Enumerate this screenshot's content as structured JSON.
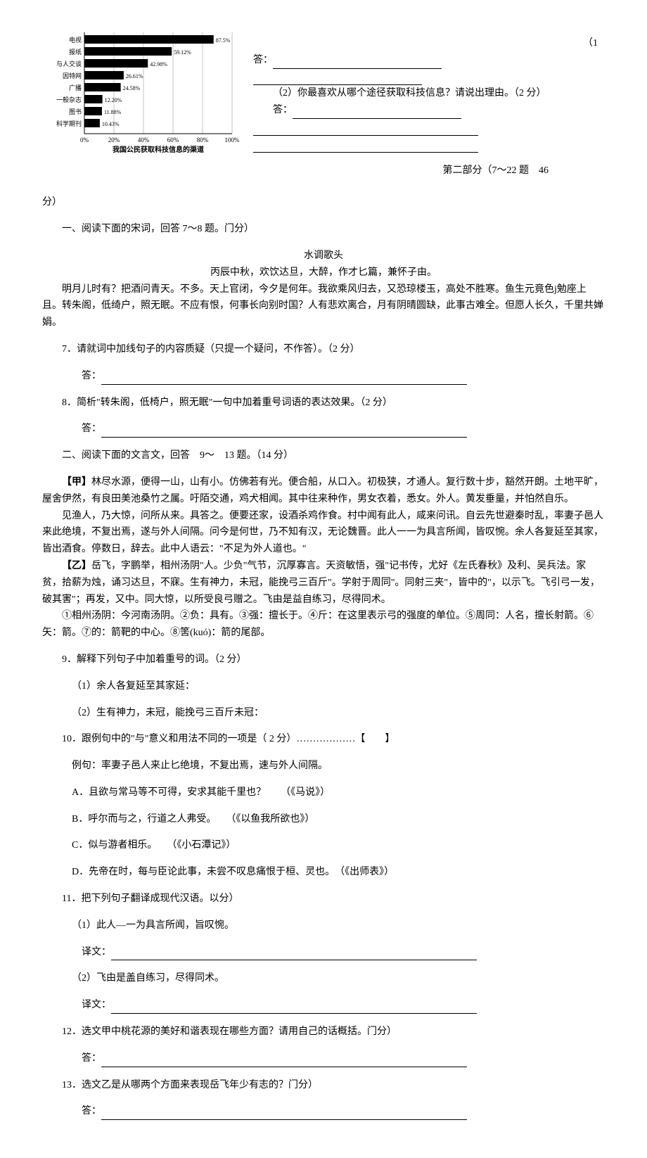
{
  "chart": {
    "type": "horizontal_bar",
    "title": "我国公民获取科技信息的渠道",
    "title_fontsize": 10,
    "categories": [
      "电视",
      "报纸",
      "与人交谈",
      "因特网",
      "广播",
      "一般杂志",
      "图书",
      "科学期刊"
    ],
    "values": [
      87.5,
      59.12,
      42.98,
      26.61,
      24.58,
      12.2,
      11.88,
      10.43
    ],
    "value_labels": [
      "87.5%",
      "59.12%",
      "42.98%",
      "26.61%",
      "24.58%",
      "12.20%",
      "11.88%",
      "10.43%"
    ],
    "x_ticks": [
      "0%",
      "20%",
      "40%",
      "60%",
      "80%",
      "100%"
    ],
    "bar_color": "#000000",
    "background_color": "#ffffff",
    "grid_color": "#000000",
    "label_fontsize": 9,
    "value_fontsize": 8,
    "xlim": [
      0,
      100
    ]
  },
  "right": {
    "top_note": "（1",
    "ans_label": "答：",
    "q2": "（2）你最喜欢从哪个途径获取科技信息？请说出理由。（2 分）",
    "part2_header": "第二部分（7～22 题　46"
  },
  "fen": "分）",
  "section1_intro": "一、阅读下面的宋词，回答 7～8 题。门分）",
  "poem_title": "水调歌头",
  "poem_sub": "丙辰中秋，欢饮达旦，大醉，作才匕篇，兼怀子由。",
  "poem_body1": "明月儿时有？把酒问青天。不多。天上官闭，今夕是何年。我欲乘风归去，又恐琼楼玉，高处不胜寒。鱼生元竟色j勉座上且。转朱阁，低绮户，照无眠。不应有恨，何事长向别时国？人有悲欢离合，月有阴晴圆缺，此事古难全。但愿人长久，千里共婵娟。",
  "q7": "7．请就词中加线句子的内容质疑（只提一个疑问，不作答）。（2 分）",
  "q8": "8．简析\"转朱阁，低椅户，照无眠\"一句中加着重号词语的表达效果。（2 分）",
  "ans": "答：",
  "section2_intro": "二、阅读下面的文言文，回答　9～　13 题。（14 分）",
  "jia_label": "【甲】",
  "jia_p1": "林尽水源，便得一山，山有小。仿佛若有光。便合船，从口入。初极狭，才通人。复行数十步，豁然开朗。土地平旷，屋舍伊然，有良田美池桑竹之属。吁陌交通，鸡犬相闻。其中往来种作，男女衣着，悉女。外人。黄发垂量，并怕然自乐。",
  "jia_p2": "见渔人，乃大惊，问所从来。具答之。便要还家，设酒杀鸡作食。村中闻有此人，咸来问讯。自云先世避秦时乱，率妻子邑人来此绝境，不复出焉，遂与外人间隔。问今是何世，乃不知有汉，无论魏晋。此人一一为具言所闻，皆叹惋。余人各复延至其家，皆出酒食。停数日，辞去。此中人语云：\"不足为外人道也。\"",
  "yi_label": "【乙】",
  "yi_p1": "岳飞，字鹏举，相州汤阴\"人。少负\"气节，沉厚寡言。天资敏悟，强\"记书传，尤好《左氏春秋》及利、吴兵法。家贫，拾薪为烛，诵习达旦，不寐。生有神力，未冠，能挽弓三百斤\"。学射于周同\"。同射三夹\"，皆中的\"，以示飞。飞引弓一发，破其害\"；再发，又中。同大惊，以所受良弓赠之。飞由是益自练习，尽得同术。",
  "notes": "①相州汤阴：今河南汤阴。②负：具有。③强：擅长于。④斤：在这里表示弓的强度的单位。⑤周同：人名，擅长射箭。⑥矢：箭。⑦的：箭靶的中心。⑧筈(kuó)：箭的尾部。",
  "q9": "9．解释下列句子中加着重号的词。（2 分）",
  "q9_1": "（1）余人各复延至其家延：",
  "q9_2": "（2）生有神力，未冠，能挽弓三百斤未冠：",
  "q10": "10．跟例句中的\"与\"意义和用法不同的一项是（ 2 分）………………【　　】",
  "q10_eg": "例句：率妻子邑人来止匕绝境，不复出焉，速与外人间隔。",
  "q10_a": "A．且欲与常马等不可得，安求其能千里也？　　（《马说》）",
  "q10_b": "B．呼尔而与之，行道之人弗受。　　（《以鱼我所欲也》）",
  "q10_c": "C．似与游者相乐。　　（《小石潭记》）",
  "q10_d": "D．先帝在时，每与臣论此事，未尝不叹息痛恨于桓、灵也。　（《出师表》）",
  "q11": "11．把下列句子翻译成现代汉语。以分）",
  "q11_1": "（1）此人—一为具言所闻，旨叹惋。",
  "q11_2": "（2）飞由是盖自练习，尽得同术。",
  "yiwen": "译文：",
  "q12": "12．选文甲中桃花源的美好和谐表现在哪些方面？请用自己的话概括。门分）",
  "q13": "13．选文乙是从哪两个方面来表现岳飞年少有志的？门分）"
}
